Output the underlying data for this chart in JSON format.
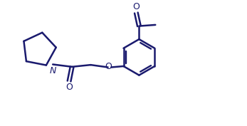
{
  "background_color": "#ffffff",
  "line_color": "#1a1a6e",
  "line_width": 1.8,
  "figsize": [
    3.47,
    1.77
  ],
  "dpi": 100,
  "xlim": [
    0,
    10
  ],
  "ylim": [
    0,
    5.1
  ]
}
